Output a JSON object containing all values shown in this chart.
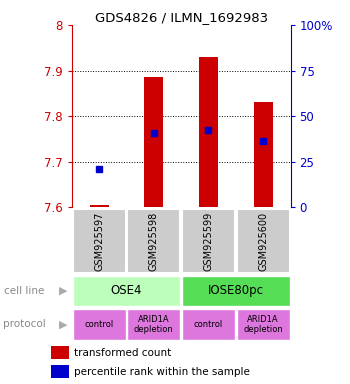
{
  "title": "GDS4826 / ILMN_1692983",
  "samples": [
    "GSM925597",
    "GSM925598",
    "GSM925599",
    "GSM925600"
  ],
  "red_values": [
    7.605,
    7.885,
    7.93,
    7.83
  ],
  "blue_values": [
    7.685,
    7.762,
    7.77,
    7.745
  ],
  "ylim": [
    7.6,
    8.0
  ],
  "yticks_left": [
    7.6,
    7.7,
    7.8,
    7.9,
    8.0
  ],
  "ytick_left_labels": [
    "7.6",
    "7.7",
    "7.8",
    "7.9",
    "8"
  ],
  "yticks_right_pct": [
    0,
    25,
    50,
    75,
    100
  ],
  "ytick_right_labels": [
    "0",
    "25",
    "50",
    "75",
    "100%"
  ],
  "cell_line_labels": [
    "OSE4",
    "IOSE80pc"
  ],
  "cell_line_colors": [
    "#bbffbb",
    "#55dd55"
  ],
  "protocol_labels": [
    "control",
    "ARID1A\ndepletion",
    "control",
    "ARID1A\ndepletion"
  ],
  "protocol_color": "#dd77dd",
  "sample_box_color": "#cccccc",
  "legend_red": "transformed count",
  "legend_blue": "percentile rank within the sample",
  "red_color": "#cc0000",
  "blue_color": "#0000cc",
  "background_color": "#ffffff",
  "grid_lines": [
    7.7,
    7.8,
    7.9
  ]
}
